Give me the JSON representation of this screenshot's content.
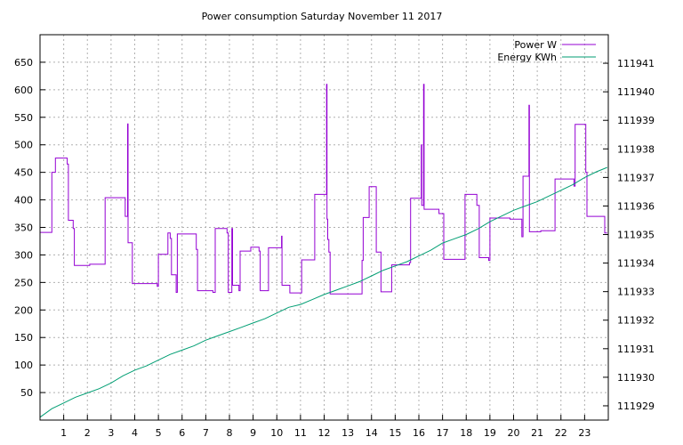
{
  "chart_data": {
    "type": "line",
    "title": "Power consumption Saturday November 11 2017",
    "xlabel": "",
    "ylabel": "",
    "xlim": [
      0,
      24
    ],
    "ylim": [
      0,
      700
    ],
    "y2lim": [
      111928.5,
      111942
    ],
    "grid": true,
    "legend_position": "top-right",
    "x_ticks": [
      1,
      2,
      3,
      4,
      5,
      6,
      7,
      8,
      9,
      10,
      11,
      12,
      13,
      14,
      15,
      16,
      17,
      18,
      19,
      20,
      21,
      22,
      23
    ],
    "y_ticks": [
      50,
      100,
      150,
      200,
      250,
      300,
      350,
      400,
      450,
      500,
      550,
      600,
      650
    ],
    "y2_ticks": [
      111929,
      111930,
      111931,
      111932,
      111933,
      111934,
      111935,
      111936,
      111937,
      111938,
      111939,
      111940,
      111941
    ],
    "series": [
      {
        "name": "Power W",
        "axis": "left",
        "color": "#9400d3",
        "points": [
          [
            0.0,
            341
          ],
          [
            0.5,
            341
          ],
          [
            0.5,
            450
          ],
          [
            0.65,
            450
          ],
          [
            0.65,
            476
          ],
          [
            1.15,
            476
          ],
          [
            1.15,
            465
          ],
          [
            1.2,
            465
          ],
          [
            1.2,
            363
          ],
          [
            1.4,
            363
          ],
          [
            1.4,
            348
          ],
          [
            1.45,
            348
          ],
          [
            1.45,
            281
          ],
          [
            2.1,
            281
          ],
          [
            2.1,
            283
          ],
          [
            2.75,
            283
          ],
          [
            2.75,
            404
          ],
          [
            3.6,
            404
          ],
          [
            3.6,
            370
          ],
          [
            3.7,
            370
          ],
          [
            3.7,
            538
          ],
          [
            3.72,
            538
          ],
          [
            3.72,
            322
          ],
          [
            3.9,
            322
          ],
          [
            3.9,
            248
          ],
          [
            4.95,
            248
          ],
          [
            4.95,
            243
          ],
          [
            5.0,
            243
          ],
          [
            5.0,
            301
          ],
          [
            5.4,
            301
          ],
          [
            5.4,
            340
          ],
          [
            5.5,
            340
          ],
          [
            5.5,
            330
          ],
          [
            5.55,
            330
          ],
          [
            5.55,
            264
          ],
          [
            5.75,
            264
          ],
          [
            5.75,
            232
          ],
          [
            5.8,
            232
          ],
          [
            5.8,
            338
          ],
          [
            6.6,
            338
          ],
          [
            6.6,
            310
          ],
          [
            6.65,
            310
          ],
          [
            6.65,
            235
          ],
          [
            7.3,
            235
          ],
          [
            7.3,
            232
          ],
          [
            7.4,
            232
          ],
          [
            7.4,
            348
          ],
          [
            7.9,
            348
          ],
          [
            7.9,
            340
          ],
          [
            7.95,
            340
          ],
          [
            7.95,
            232
          ],
          [
            8.1,
            232
          ],
          [
            8.1,
            348
          ],
          [
            8.13,
            348
          ],
          [
            8.13,
            245
          ],
          [
            8.4,
            245
          ],
          [
            8.4,
            235
          ],
          [
            8.45,
            235
          ],
          [
            8.45,
            307
          ],
          [
            8.9,
            307
          ],
          [
            8.9,
            314
          ],
          [
            9.25,
            314
          ],
          [
            9.25,
            307
          ],
          [
            9.3,
            307
          ],
          [
            9.3,
            235
          ],
          [
            9.65,
            235
          ],
          [
            9.65,
            313
          ],
          [
            10.2,
            313
          ],
          [
            10.2,
            334
          ],
          [
            10.22,
            334
          ],
          [
            10.22,
            245
          ],
          [
            10.55,
            245
          ],
          [
            10.55,
            231
          ],
          [
            11.05,
            231
          ],
          [
            11.05,
            291
          ],
          [
            11.6,
            291
          ],
          [
            11.6,
            410
          ],
          [
            12.1,
            410
          ],
          [
            12.1,
            610
          ],
          [
            12.12,
            610
          ],
          [
            12.12,
            365
          ],
          [
            12.15,
            365
          ],
          [
            12.15,
            328
          ],
          [
            12.2,
            328
          ],
          [
            12.2,
            305
          ],
          [
            12.25,
            305
          ],
          [
            12.25,
            229
          ],
          [
            13.6,
            229
          ],
          [
            13.6,
            290
          ],
          [
            13.65,
            290
          ],
          [
            13.65,
            368
          ],
          [
            13.9,
            368
          ],
          [
            13.9,
            424
          ],
          [
            14.2,
            424
          ],
          [
            14.2,
            305
          ],
          [
            14.4,
            305
          ],
          [
            14.4,
            233
          ],
          [
            14.85,
            233
          ],
          [
            14.85,
            282
          ],
          [
            15.6,
            282
          ],
          [
            15.6,
            286
          ],
          [
            15.65,
            286
          ],
          [
            15.65,
            403
          ],
          [
            16.1,
            403
          ],
          [
            16.1,
            500
          ],
          [
            16.12,
            500
          ],
          [
            16.12,
            390
          ],
          [
            16.2,
            390
          ],
          [
            16.2,
            610
          ],
          [
            16.22,
            610
          ],
          [
            16.22,
            383
          ],
          [
            16.85,
            383
          ],
          [
            16.85,
            375
          ],
          [
            17.05,
            375
          ],
          [
            17.05,
            292
          ],
          [
            17.95,
            292
          ],
          [
            17.95,
            410
          ],
          [
            18.45,
            410
          ],
          [
            18.45,
            390
          ],
          [
            18.55,
            390
          ],
          [
            18.55,
            295
          ],
          [
            18.95,
            295
          ],
          [
            18.95,
            290
          ],
          [
            19.0,
            290
          ],
          [
            19.0,
            367
          ],
          [
            19.85,
            367
          ],
          [
            19.85,
            365
          ],
          [
            20.35,
            365
          ],
          [
            20.35,
            333
          ],
          [
            20.4,
            333
          ],
          [
            20.4,
            443
          ],
          [
            20.65,
            443
          ],
          [
            20.65,
            572
          ],
          [
            20.67,
            572
          ],
          [
            20.67,
            342
          ],
          [
            21.15,
            342
          ],
          [
            21.15,
            344
          ],
          [
            21.75,
            344
          ],
          [
            21.75,
            438
          ],
          [
            22.55,
            438
          ],
          [
            22.55,
            425
          ],
          [
            22.6,
            425
          ],
          [
            22.6,
            537
          ],
          [
            23.05,
            537
          ],
          [
            23.05,
            450
          ],
          [
            23.1,
            450
          ],
          [
            23.1,
            370
          ],
          [
            23.85,
            370
          ],
          [
            23.85,
            340
          ],
          [
            23.95,
            340
          ]
        ]
      },
      {
        "name": "Energy KWh",
        "axis": "right",
        "color": "#009e73",
        "points": [
          [
            0.0,
            111928.6
          ],
          [
            0.5,
            111928.9
          ],
          [
            1.0,
            111929.1
          ],
          [
            1.5,
            111929.3
          ],
          [
            2.0,
            111929.45
          ],
          [
            2.5,
            111929.6
          ],
          [
            3.0,
            111929.8
          ],
          [
            3.5,
            111930.05
          ],
          [
            4.0,
            111930.25
          ],
          [
            4.5,
            111930.4
          ],
          [
            5.0,
            111930.6
          ],
          [
            5.5,
            111930.8
          ],
          [
            6.0,
            111930.95
          ],
          [
            6.5,
            111931.1
          ],
          [
            7.0,
            111931.3
          ],
          [
            7.5,
            111931.45
          ],
          [
            8.0,
            111931.6
          ],
          [
            8.5,
            111931.75
          ],
          [
            9.0,
            111931.9
          ],
          [
            9.5,
            111932.05
          ],
          [
            10.0,
            111932.25
          ],
          [
            10.5,
            111932.45
          ],
          [
            11.0,
            111932.55
          ],
          [
            11.5,
            111932.72
          ],
          [
            12.0,
            111932.9
          ],
          [
            12.5,
            111933.05
          ],
          [
            13.0,
            111933.2
          ],
          [
            13.5,
            111933.35
          ],
          [
            14.0,
            111933.55
          ],
          [
            14.5,
            111933.75
          ],
          [
            15.0,
            111933.9
          ],
          [
            15.5,
            111934.05
          ],
          [
            16.0,
            111934.25
          ],
          [
            16.5,
            111934.45
          ],
          [
            17.0,
            111934.7
          ],
          [
            17.5,
            111934.85
          ],
          [
            18.0,
            111935.0
          ],
          [
            18.5,
            111935.2
          ],
          [
            19.0,
            111935.45
          ],
          [
            19.5,
            111935.65
          ],
          [
            20.0,
            111935.85
          ],
          [
            20.5,
            111936.0
          ],
          [
            21.0,
            111936.15
          ],
          [
            21.5,
            111936.35
          ],
          [
            22.0,
            111936.55
          ],
          [
            22.5,
            111936.75
          ],
          [
            23.0,
            111937.0
          ],
          [
            23.5,
            111937.2
          ],
          [
            23.95,
            111937.35
          ]
        ]
      }
    ]
  }
}
